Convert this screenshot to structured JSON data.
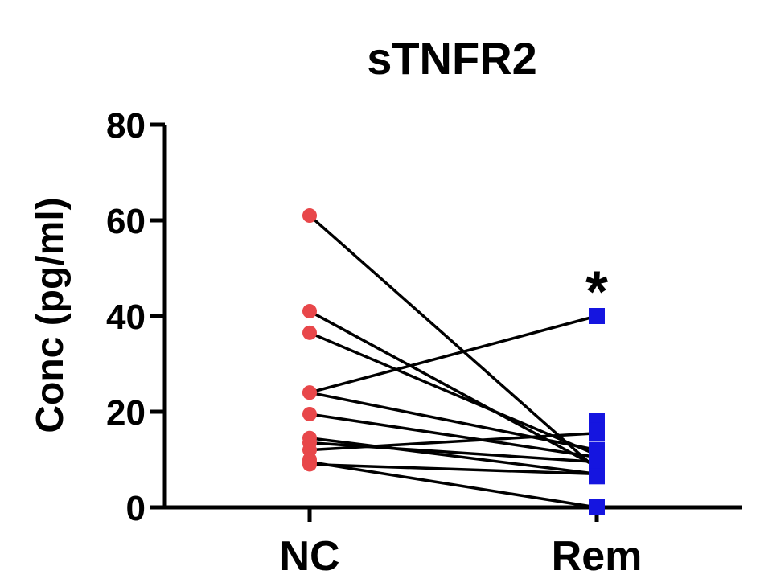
{
  "chart_data": {
    "type": "scatter",
    "title": "sTNFR2",
    "xlabel": "",
    "ylabel": "Conc (pg/ml)",
    "categories": [
      "NC",
      "Rem"
    ],
    "ylim": [
      0,
      80
    ],
    "yticks": [
      0,
      20,
      40,
      60,
      80
    ],
    "grid": false,
    "legend": "none",
    "series": [
      {
        "group": "NC",
        "marker": "circle",
        "color": "#e8474a",
        "values": [
          61,
          41,
          36.5,
          24,
          24,
          19.5,
          14.5,
          13.5,
          12,
          10,
          9.5,
          9
        ]
      },
      {
        "group": "Rem",
        "marker": "square",
        "color": "#1515e0",
        "values": [
          18,
          16,
          40,
          12,
          7,
          11,
          15.5,
          8.5,
          7.5,
          0,
          6.5,
          10
        ]
      }
    ],
    "pairs": [
      [
        61,
        8
      ],
      [
        41,
        8.5
      ],
      [
        36.5,
        11
      ],
      [
        24,
        40
      ],
      [
        24,
        12
      ],
      [
        19.5,
        10.5
      ],
      [
        14.5,
        7
      ],
      [
        13.5,
        9.5
      ],
      [
        12,
        15.5
      ],
      [
        9.5,
        0
      ],
      [
        9,
        7
      ]
    ],
    "annotations": [
      {
        "text": "*",
        "category": "Rem",
        "y": 48
      }
    ]
  },
  "colors": {
    "nc_marker": "#e8474a",
    "rem_marker": "#1515e0",
    "line": "#000000",
    "axis": "#000000"
  }
}
